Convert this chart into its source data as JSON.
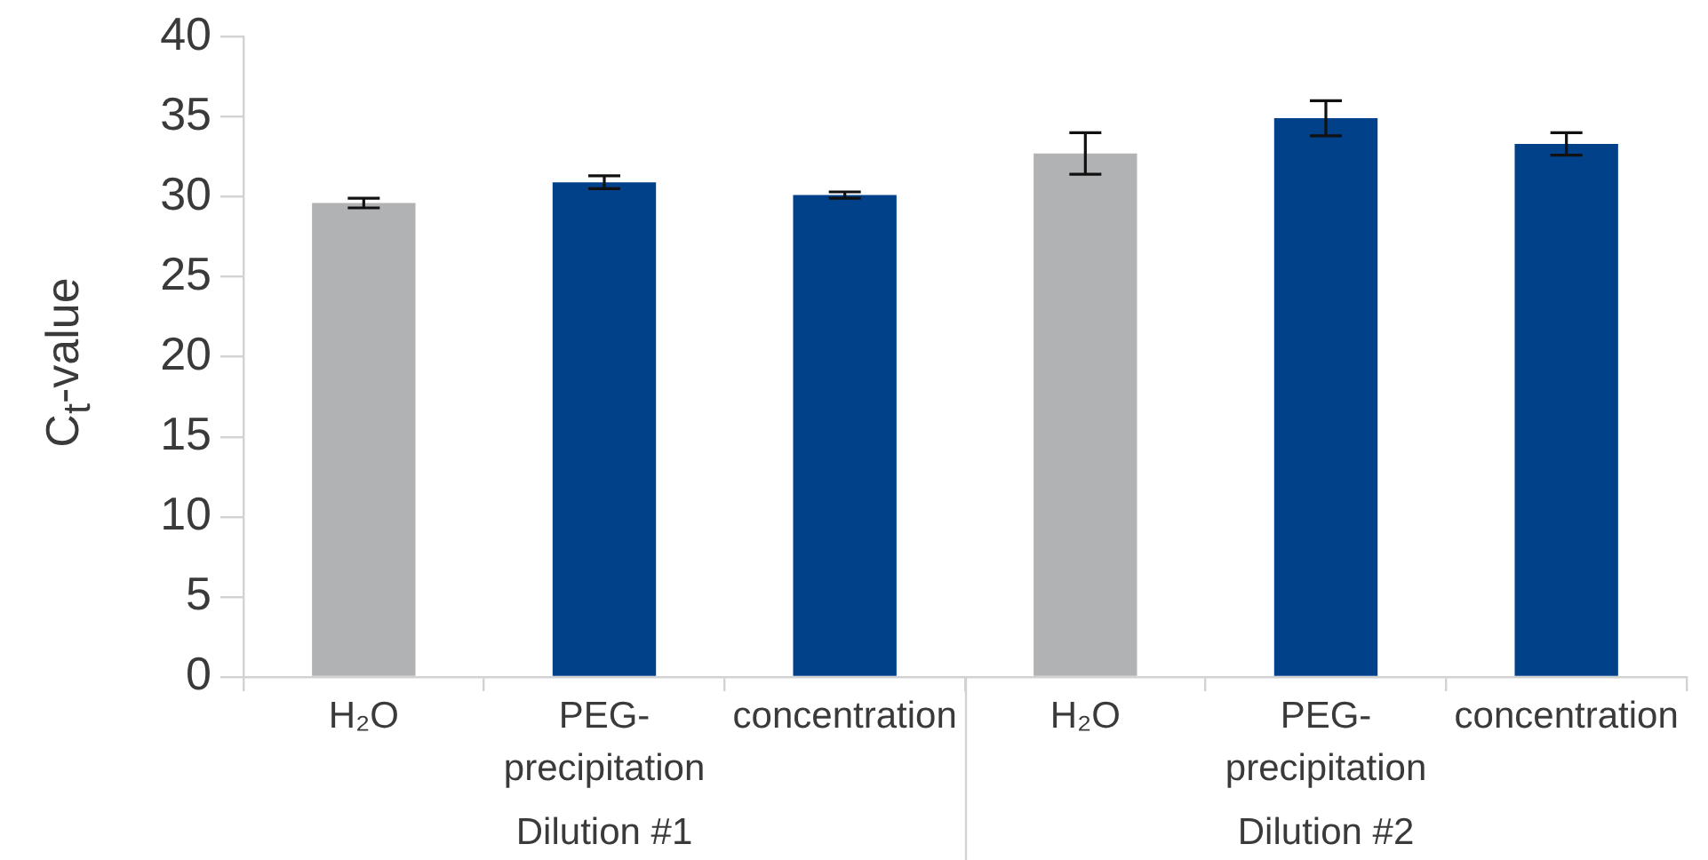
{
  "chart_data": {
    "type": "bar",
    "ylabel": "C$_{t}$-value",
    "categories": [
      "H₂O",
      "PEG-precipitation",
      "concentration",
      "H₂O",
      "PEG-precipitation",
      "concentration"
    ],
    "values": [
      29.6,
      30.9,
      30.1,
      32.7,
      34.9,
      33.3
    ],
    "errors": [
      0.3,
      0.4,
      0.2,
      1.3,
      1.1,
      0.7
    ],
    "colors": [
      "#b1b2b4",
      "#00418a",
      "#00418a",
      "#b1b2b4",
      "#00418a",
      "#00418a"
    ],
    "ylim": [
      0,
      40
    ],
    "yticks": [
      0,
      5,
      10,
      15,
      20,
      25,
      30,
      35,
      40
    ],
    "annotations": [
      "Dilution #1",
      "Dilution #2"
    ]
  }
}
